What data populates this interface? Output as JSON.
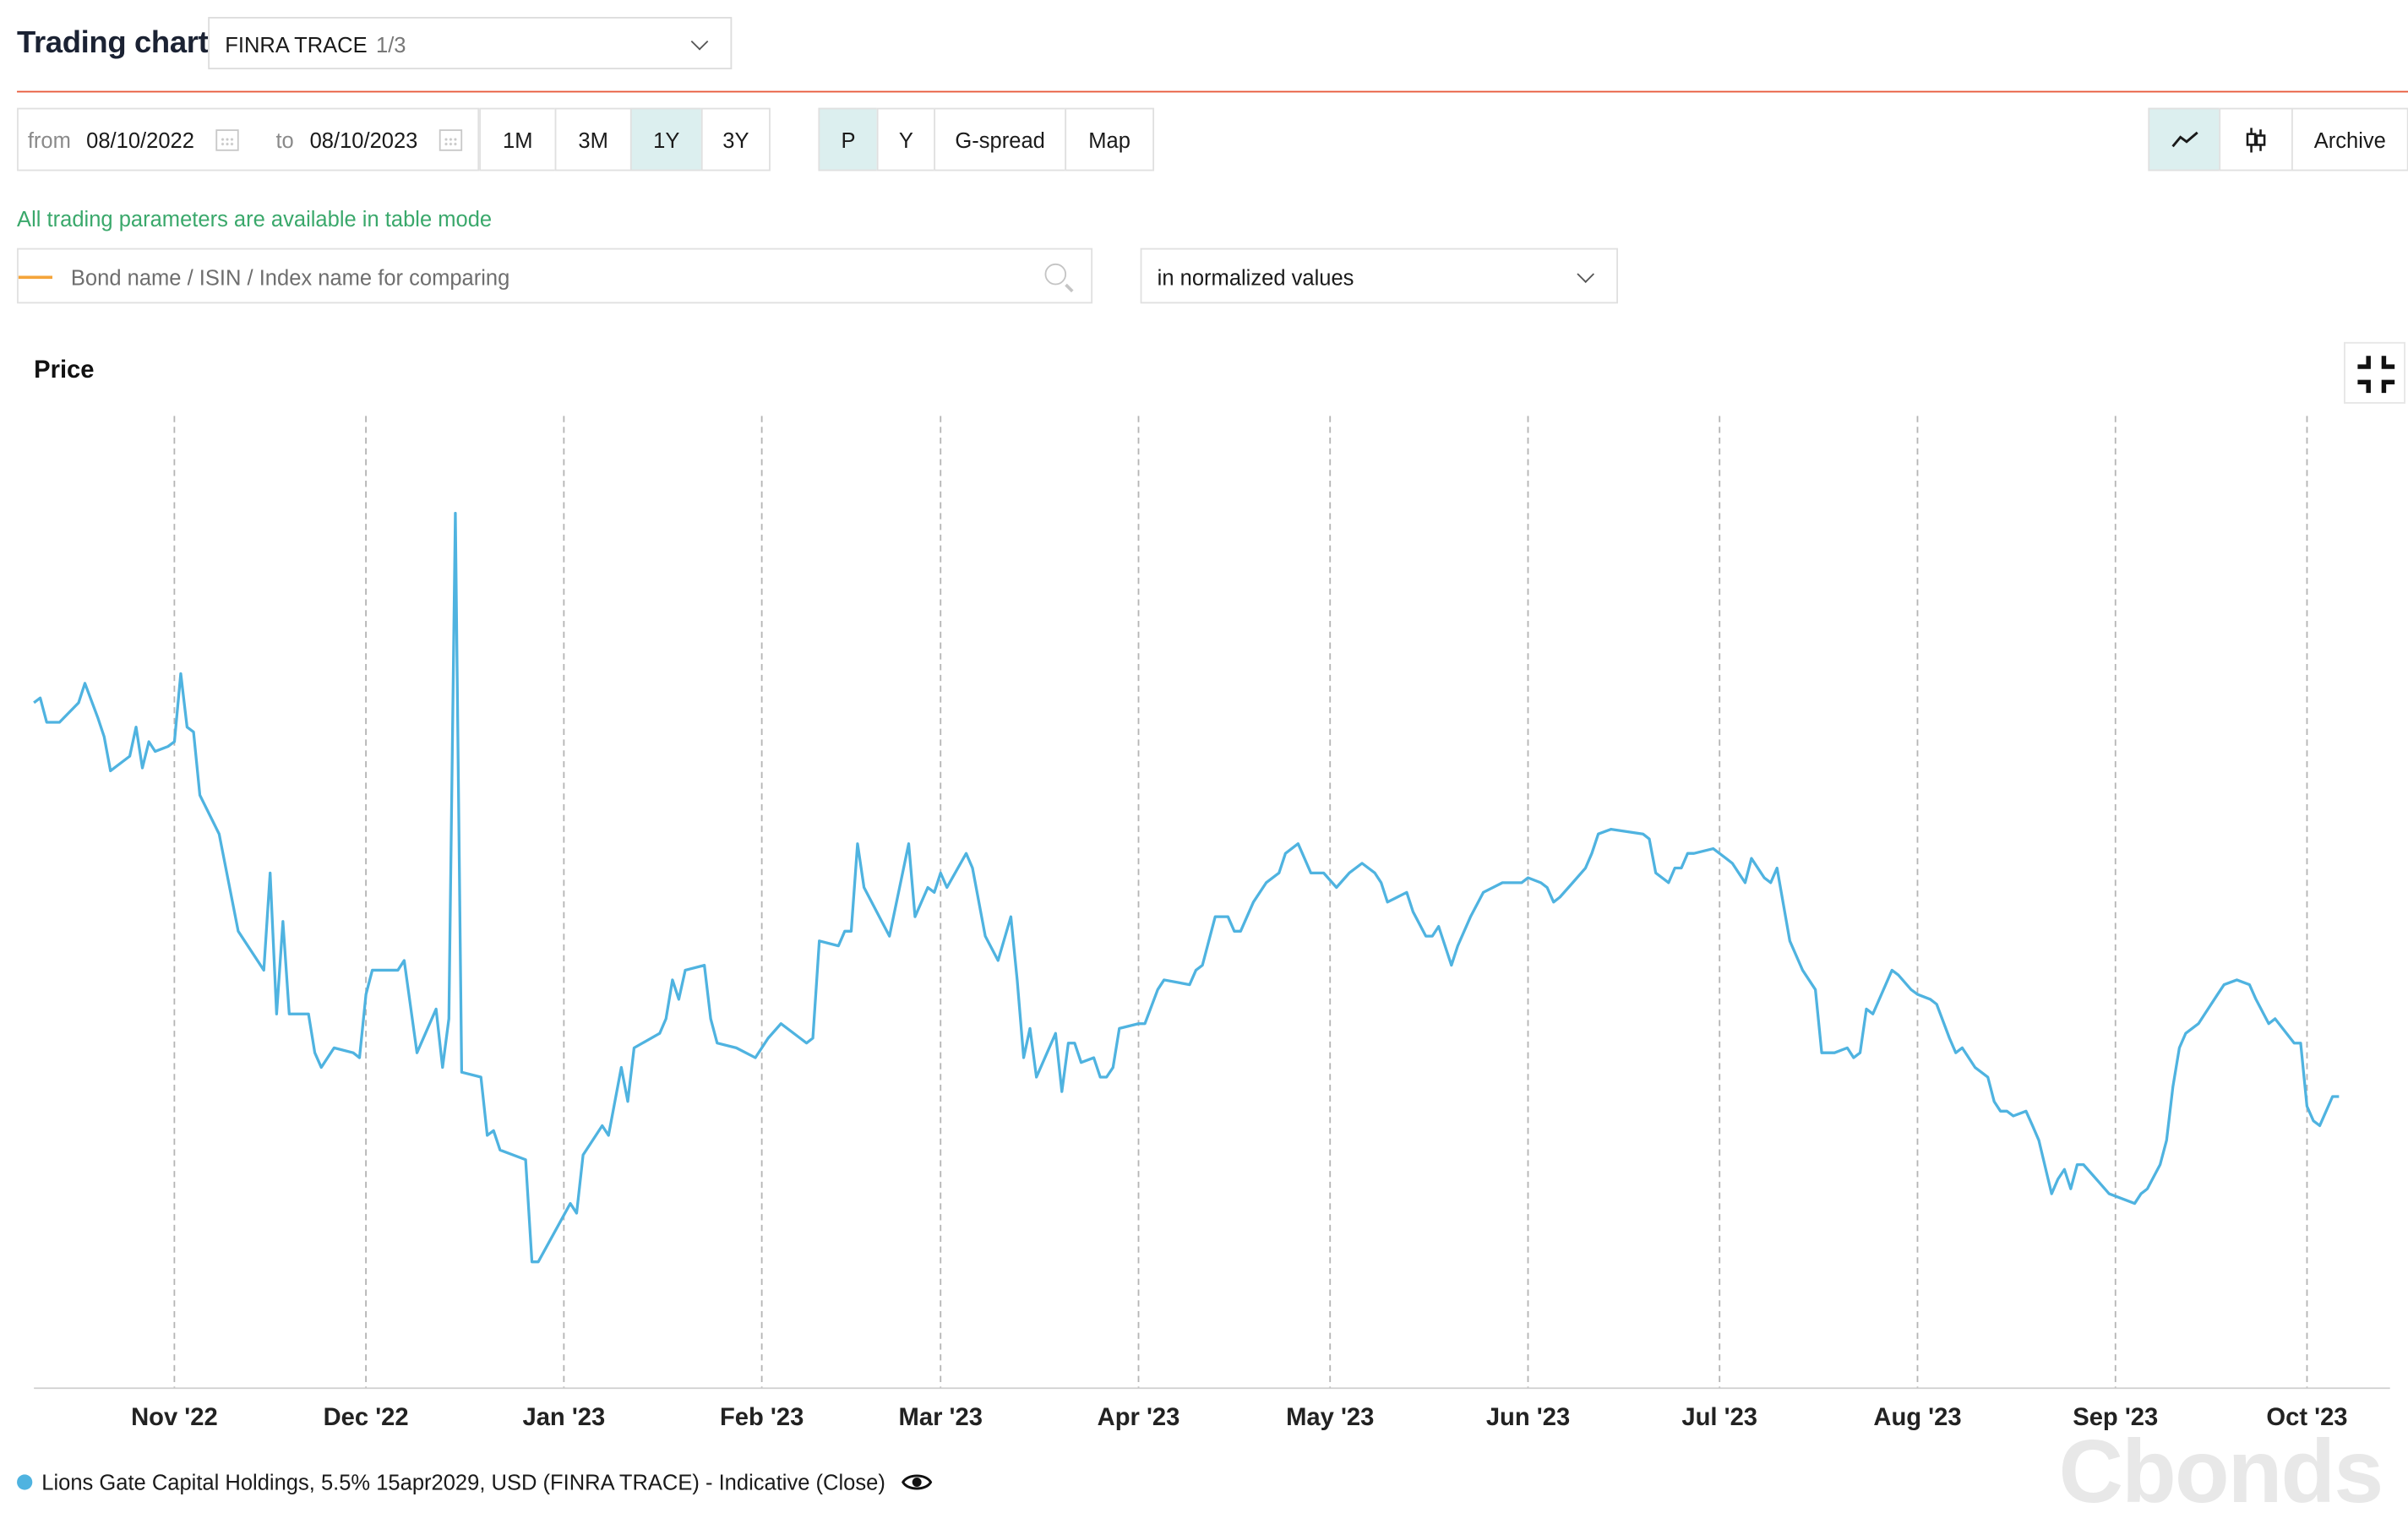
{
  "header": {
    "title": "Trading chart",
    "source_select": {
      "value": "FINRA TRACE",
      "counter": "1/3"
    }
  },
  "toolbar": {
    "from_label": "from",
    "from_value": "08/10/2022",
    "to_label": "to",
    "to_value": "08/10/2023",
    "periods": [
      "1M",
      "3M",
      "1Y",
      "3Y"
    ],
    "active_period": "1Y",
    "modes": [
      "P",
      "Y",
      "G-spread",
      "Map"
    ],
    "active_mode": "P",
    "archive_label": "Archive"
  },
  "note": "All trading parameters are available in table mode",
  "compare": {
    "placeholder": "Bond name / ISIN / Index name for comparing",
    "normalization": "in normalized values"
  },
  "colors": {
    "series": "#4fb3e0",
    "accent": "#e8593a",
    "active_bg": "#dcefef",
    "note": "#3aa86b"
  },
  "watermark": "Cbonds",
  "chart_data": {
    "type": "line",
    "title": "Price",
    "x_domain": [
      "2022-10-10",
      "2023-10-14"
    ],
    "x_ticks": [
      {
        "date": "2022-11-01",
        "label": "Nov '22"
      },
      {
        "date": "2022-12-01",
        "label": "Dec '22"
      },
      {
        "date": "2023-01-01",
        "label": "Jan '23"
      },
      {
        "date": "2023-02-01",
        "label": "Feb '23"
      },
      {
        "date": "2023-03-01",
        "label": "Mar '23"
      },
      {
        "date": "2023-04-01",
        "label": "Apr '23"
      },
      {
        "date": "2023-05-01",
        "label": "May '23"
      },
      {
        "date": "2023-06-01",
        "label": "Jun '23"
      },
      {
        "date": "2023-07-01",
        "label": "Jul '23"
      },
      {
        "date": "2023-08-01",
        "label": "Aug '23"
      },
      {
        "date": "2023-09-01",
        "label": "Sep '23"
      },
      {
        "date": "2023-10-01",
        "label": "Oct '23"
      }
    ],
    "y_range": [
      0,
      100
    ],
    "y_axis_visible": false,
    "grid": "vertical dashed at month starts",
    "legend_position": "bottom-left",
    "series": [
      {
        "name": "Lions Gate Capital Holdings, 5.5% 15apr2029, USD (FINRA TRACE) - Indicative (Close)",
        "color": "#4fb3e0",
        "points": [
          [
            "2022-10-10",
            70.5
          ],
          [
            "2022-10-11",
            71
          ],
          [
            "2022-10-12",
            68.5
          ],
          [
            "2022-10-14",
            68.5
          ],
          [
            "2022-10-17",
            70.5
          ],
          [
            "2022-10-18",
            72.5
          ],
          [
            "2022-10-20",
            69
          ],
          [
            "2022-10-21",
            67
          ],
          [
            "2022-10-22",
            63.5
          ],
          [
            "2022-10-25",
            65
          ],
          [
            "2022-10-26",
            68
          ],
          [
            "2022-10-27",
            63.8
          ],
          [
            "2022-10-28",
            66.5
          ],
          [
            "2022-10-29",
            65.5
          ],
          [
            "2022-10-31",
            66
          ],
          [
            "2022-11-01",
            66.5
          ],
          [
            "2022-11-02",
            73.5
          ],
          [
            "2022-11-03",
            68
          ],
          [
            "2022-11-04",
            67.5
          ],
          [
            "2022-11-05",
            61
          ],
          [
            "2022-11-08",
            57
          ],
          [
            "2022-11-11",
            47
          ],
          [
            "2022-11-15",
            43
          ],
          [
            "2022-11-16",
            53
          ],
          [
            "2022-11-17",
            38.5
          ],
          [
            "2022-11-18",
            48
          ],
          [
            "2022-11-19",
            38.5
          ],
          [
            "2022-11-22",
            38.5
          ],
          [
            "2022-11-23",
            34.5
          ],
          [
            "2022-11-24",
            33
          ],
          [
            "2022-11-26",
            35
          ],
          [
            "2022-11-29",
            34.5
          ],
          [
            "2022-11-30",
            34
          ],
          [
            "2022-12-01",
            40.5
          ],
          [
            "2022-12-02",
            43
          ],
          [
            "2022-12-06",
            43
          ],
          [
            "2022-12-07",
            44
          ],
          [
            "2022-12-09",
            34.5
          ],
          [
            "2022-12-12",
            39
          ],
          [
            "2022-12-13",
            33
          ],
          [
            "2022-12-14",
            38
          ],
          [
            "2022-12-15",
            90
          ],
          [
            "2022-12-16",
            32.5
          ],
          [
            "2022-12-19",
            32
          ],
          [
            "2022-12-20",
            26
          ],
          [
            "2022-12-21",
            26.5
          ],
          [
            "2022-12-22",
            24.5
          ],
          [
            "2022-12-26",
            23.5
          ],
          [
            "2022-12-27",
            13
          ],
          [
            "2022-12-28",
            13
          ],
          [
            "2023-01-02",
            19
          ],
          [
            "2023-01-03",
            18
          ],
          [
            "2023-01-04",
            24
          ],
          [
            "2023-01-07",
            27
          ],
          [
            "2023-01-08",
            26
          ],
          [
            "2023-01-10",
            33
          ],
          [
            "2023-01-11",
            29.5
          ],
          [
            "2023-01-12",
            35
          ],
          [
            "2023-01-16",
            36.5
          ],
          [
            "2023-01-17",
            38
          ],
          [
            "2023-01-18",
            42
          ],
          [
            "2023-01-19",
            40
          ],
          [
            "2023-01-20",
            43
          ],
          [
            "2023-01-23",
            43.5
          ],
          [
            "2023-01-24",
            38
          ],
          [
            "2023-01-25",
            35.5
          ],
          [
            "2023-01-28",
            35
          ],
          [
            "2023-01-31",
            34
          ],
          [
            "2023-02-02",
            36
          ],
          [
            "2023-02-04",
            37.5
          ],
          [
            "2023-02-07",
            36
          ],
          [
            "2023-02-08",
            35.5
          ],
          [
            "2023-02-09",
            36
          ],
          [
            "2023-02-10",
            46
          ],
          [
            "2023-02-13",
            45.5
          ],
          [
            "2023-02-14",
            47
          ],
          [
            "2023-02-15",
            47
          ],
          [
            "2023-02-16",
            56
          ],
          [
            "2023-02-17",
            51.5
          ],
          [
            "2023-02-21",
            46.5
          ],
          [
            "2023-02-24",
            56
          ],
          [
            "2023-02-25",
            48.5
          ],
          [
            "2023-02-27",
            51.5
          ],
          [
            "2023-02-28",
            51
          ],
          [
            "2023-03-01",
            53
          ],
          [
            "2023-03-02",
            51.5
          ],
          [
            "2023-03-05",
            55
          ],
          [
            "2023-03-06",
            53.5
          ],
          [
            "2023-03-08",
            46.5
          ],
          [
            "2023-03-10",
            44
          ],
          [
            "2023-03-12",
            48.5
          ],
          [
            "2023-03-13",
            42
          ],
          [
            "2023-03-14",
            34
          ],
          [
            "2023-03-15",
            37
          ],
          [
            "2023-03-16",
            32
          ],
          [
            "2023-03-19",
            36.5
          ],
          [
            "2023-03-20",
            30.5
          ],
          [
            "2023-03-21",
            35.5
          ],
          [
            "2023-03-22",
            35.5
          ],
          [
            "2023-03-23",
            33.5
          ],
          [
            "2023-03-25",
            34
          ],
          [
            "2023-03-26",
            32
          ],
          [
            "2023-03-27",
            32
          ],
          [
            "2023-03-28",
            33
          ],
          [
            "2023-03-29",
            37
          ],
          [
            "2023-04-01",
            37.5
          ],
          [
            "2023-04-02",
            37.5
          ],
          [
            "2023-04-04",
            41
          ],
          [
            "2023-04-05",
            42
          ],
          [
            "2023-04-09",
            41.5
          ],
          [
            "2023-04-10",
            43
          ],
          [
            "2023-04-11",
            43.5
          ],
          [
            "2023-04-13",
            48.5
          ],
          [
            "2023-04-15",
            48.5
          ],
          [
            "2023-04-16",
            47
          ],
          [
            "2023-04-17",
            47
          ],
          [
            "2023-04-19",
            50
          ],
          [
            "2023-04-21",
            52
          ],
          [
            "2023-04-23",
            53
          ],
          [
            "2023-04-24",
            55
          ],
          [
            "2023-04-26",
            56
          ],
          [
            "2023-04-28",
            53
          ],
          [
            "2023-04-30",
            53
          ],
          [
            "2023-05-02",
            51.5
          ],
          [
            "2023-05-04",
            53
          ],
          [
            "2023-05-06",
            54
          ],
          [
            "2023-05-08",
            53
          ],
          [
            "2023-05-09",
            52
          ],
          [
            "2023-05-10",
            50
          ],
          [
            "2023-05-13",
            51
          ],
          [
            "2023-05-14",
            49
          ],
          [
            "2023-05-16",
            46.5
          ],
          [
            "2023-05-17",
            46.5
          ],
          [
            "2023-05-18",
            47.5
          ],
          [
            "2023-05-20",
            43.5
          ],
          [
            "2023-05-21",
            45.5
          ],
          [
            "2023-05-23",
            48.5
          ],
          [
            "2023-05-25",
            51
          ],
          [
            "2023-05-28",
            52
          ],
          [
            "2023-05-29",
            52
          ],
          [
            "2023-05-31",
            52
          ],
          [
            "2023-06-01",
            52.5
          ],
          [
            "2023-06-03",
            52
          ],
          [
            "2023-06-04",
            51.5
          ],
          [
            "2023-06-05",
            50
          ],
          [
            "2023-06-06",
            50.5
          ],
          [
            "2023-06-08",
            52
          ],
          [
            "2023-06-10",
            53.5
          ],
          [
            "2023-06-11",
            55
          ],
          [
            "2023-06-12",
            57
          ],
          [
            "2023-06-14",
            57.5
          ],
          [
            "2023-06-19",
            57
          ],
          [
            "2023-06-20",
            56.5
          ],
          [
            "2023-06-21",
            53
          ],
          [
            "2023-06-23",
            52
          ],
          [
            "2023-06-24",
            53.5
          ],
          [
            "2023-06-25",
            53.5
          ],
          [
            "2023-06-26",
            55
          ],
          [
            "2023-06-27",
            55
          ],
          [
            "2023-06-30",
            55.5
          ],
          [
            "2023-07-02",
            54.5
          ],
          [
            "2023-07-03",
            54
          ],
          [
            "2023-07-05",
            52
          ],
          [
            "2023-07-06",
            54.5
          ],
          [
            "2023-07-08",
            52.5
          ],
          [
            "2023-07-09",
            52
          ],
          [
            "2023-07-10",
            53.5
          ],
          [
            "2023-07-12",
            46
          ],
          [
            "2023-07-14",
            43
          ],
          [
            "2023-07-16",
            41
          ],
          [
            "2023-07-17",
            34.5
          ],
          [
            "2023-07-19",
            34.5
          ],
          [
            "2023-07-21",
            35
          ],
          [
            "2023-07-22",
            34
          ],
          [
            "2023-07-23",
            34.5
          ],
          [
            "2023-07-24",
            39
          ],
          [
            "2023-07-25",
            38.5
          ],
          [
            "2023-07-28",
            43
          ],
          [
            "2023-07-29",
            42.5
          ],
          [
            "2023-07-31",
            41
          ],
          [
            "2023-08-01",
            40.5
          ],
          [
            "2023-08-03",
            40
          ],
          [
            "2023-08-04",
            39.5
          ],
          [
            "2023-08-06",
            36
          ],
          [
            "2023-08-07",
            34.5
          ],
          [
            "2023-08-08",
            35
          ],
          [
            "2023-08-10",
            33
          ],
          [
            "2023-08-12",
            32
          ],
          [
            "2023-08-13",
            29.5
          ],
          [
            "2023-08-14",
            28.5
          ],
          [
            "2023-08-15",
            28.5
          ],
          [
            "2023-08-16",
            28
          ],
          [
            "2023-08-18",
            28.5
          ],
          [
            "2023-08-19",
            27
          ],
          [
            "2023-08-20",
            25.5
          ],
          [
            "2023-08-22",
            20
          ],
          [
            "2023-08-23",
            21.5
          ],
          [
            "2023-08-24",
            22.5
          ],
          [
            "2023-08-25",
            20.5
          ],
          [
            "2023-08-26",
            23
          ],
          [
            "2023-08-27",
            23
          ],
          [
            "2023-08-29",
            21.5
          ],
          [
            "2023-08-31",
            20
          ],
          [
            "2023-09-04",
            19
          ],
          [
            "2023-09-05",
            20
          ],
          [
            "2023-09-06",
            20.5
          ],
          [
            "2023-09-08",
            23
          ],
          [
            "2023-09-09",
            25.5
          ],
          [
            "2023-09-10",
            31
          ],
          [
            "2023-09-11",
            35
          ],
          [
            "2023-09-12",
            36.5
          ],
          [
            "2023-09-14",
            37.5
          ],
          [
            "2023-09-15",
            38.5
          ],
          [
            "2023-09-17",
            40.5
          ],
          [
            "2023-09-18",
            41.5
          ],
          [
            "2023-09-20",
            42
          ],
          [
            "2023-09-22",
            41.5
          ],
          [
            "2023-09-23",
            40
          ],
          [
            "2023-09-25",
            37.5
          ],
          [
            "2023-09-26",
            38
          ],
          [
            "2023-09-29",
            35.5
          ],
          [
            "2023-09-30",
            35.5
          ],
          [
            "2023-10-01",
            29
          ],
          [
            "2023-10-02",
            27.5
          ],
          [
            "2023-10-03",
            27
          ],
          [
            "2023-10-05",
            30
          ],
          [
            "2023-10-06",
            30
          ]
        ]
      }
    ]
  }
}
